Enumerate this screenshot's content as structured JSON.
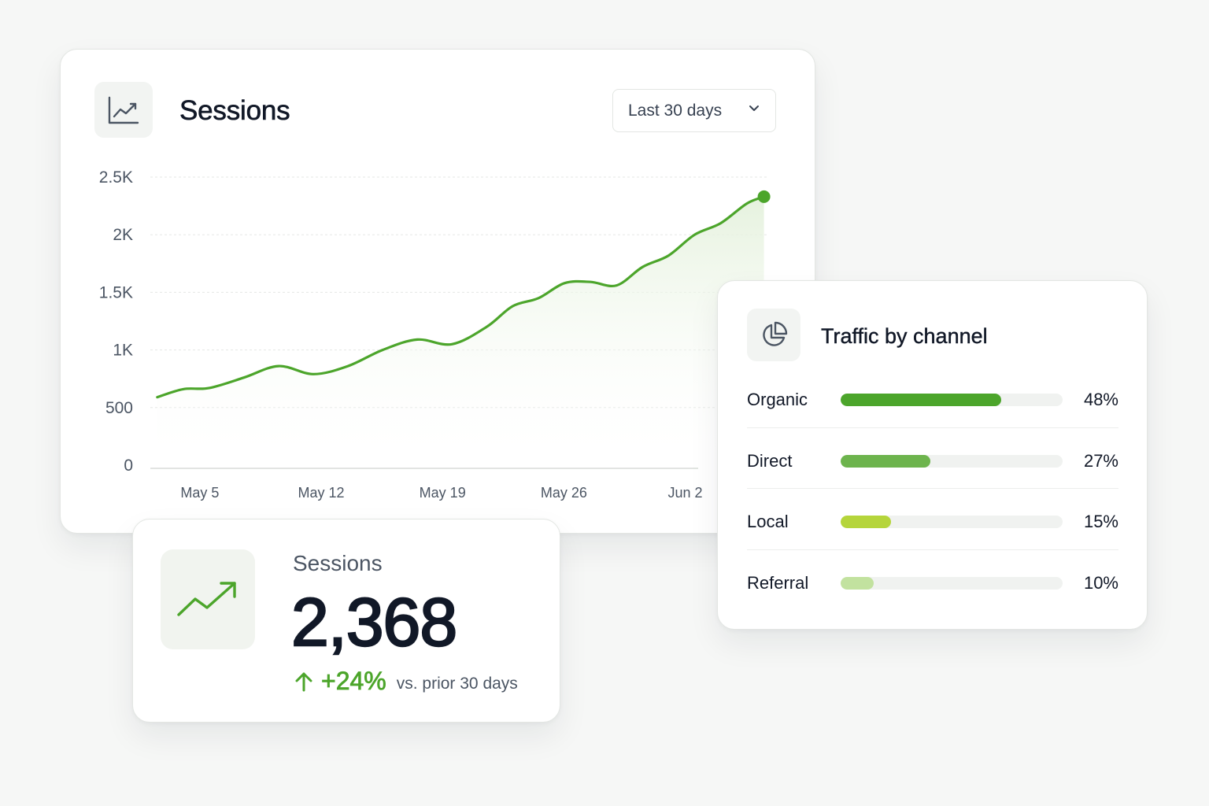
{
  "colors": {
    "accent": "#4ca52b",
    "accent_fill_top": "#e4f1dc",
    "gridline": "#e5e7e5",
    "text_primary": "#111827",
    "text_secondary": "#4b5563"
  },
  "sessions_chart_card": {
    "icon": "line-chart-icon",
    "title": "Sessions",
    "range_select": {
      "value": "Last 30 days",
      "icon": "chevron-down-icon"
    }
  },
  "chart_data": {
    "type": "area",
    "title": "Sessions",
    "xlabel": "",
    "ylabel": "",
    "ylim": [
      0,
      2500
    ],
    "y_ticks": [
      {
        "value": 0,
        "label": "0"
      },
      {
        "value": 500,
        "label": "500"
      },
      {
        "value": 1000,
        "label": "1K"
      },
      {
        "value": 1500,
        "label": "1.5K"
      },
      {
        "value": 2000,
        "label": "2K"
      },
      {
        "value": 2500,
        "label": "2.5K"
      }
    ],
    "x_ticks": [
      {
        "day": 5,
        "label": "May 5"
      },
      {
        "day": 12,
        "label": "May 12"
      },
      {
        "day": 19,
        "label": "May 19"
      },
      {
        "day": 26,
        "label": "May 26"
      },
      {
        "day": 33,
        "label": "Jun 2"
      }
    ],
    "grid": true,
    "series": [
      {
        "color": "#4ca52b",
        "end_marker": true,
        "points": [
          {
            "day": 2,
            "value": 590
          },
          {
            "day": 3.5,
            "value": 660
          },
          {
            "day": 5,
            "value": 670
          },
          {
            "day": 7,
            "value": 760
          },
          {
            "day": 9,
            "value": 860
          },
          {
            "day": 11,
            "value": 790
          },
          {
            "day": 13,
            "value": 860
          },
          {
            "day": 15,
            "value": 1000
          },
          {
            "day": 17,
            "value": 1090
          },
          {
            "day": 19,
            "value": 1050
          },
          {
            "day": 21,
            "value": 1200
          },
          {
            "day": 22.5,
            "value": 1380
          },
          {
            "day": 24,
            "value": 1450
          },
          {
            "day": 25.5,
            "value": 1580
          },
          {
            "day": 27,
            "value": 1590
          },
          {
            "day": 28.5,
            "value": 1560
          },
          {
            "day": 30,
            "value": 1720
          },
          {
            "day": 31.5,
            "value": 1820
          },
          {
            "day": 33,
            "value": 2000
          },
          {
            "day": 34.5,
            "value": 2100
          },
          {
            "day": 36,
            "value": 2270
          },
          {
            "day": 37,
            "value": 2330
          }
        ]
      }
    ]
  },
  "traffic_card": {
    "icon": "pie-chart-icon",
    "title": "Traffic by channel",
    "channels": [
      {
        "name": "Organic",
        "percent": 48,
        "label": "48%",
        "color": "#4ca52b"
      },
      {
        "name": "Direct",
        "percent": 27,
        "label": "27%",
        "color": "#6db44d"
      },
      {
        "name": "Local",
        "percent": 15,
        "label": "15%",
        "color": "#b5d53b"
      },
      {
        "name": "Referral",
        "percent": 10,
        "label": "10%",
        "color": "#c2e29f"
      }
    ]
  },
  "kpi_card": {
    "icon": "trending-up-icon",
    "label": "Sessions",
    "value": "2,368",
    "change_icon": "arrow-up-icon",
    "change": "+24%",
    "compare": "vs. prior 30 days"
  }
}
